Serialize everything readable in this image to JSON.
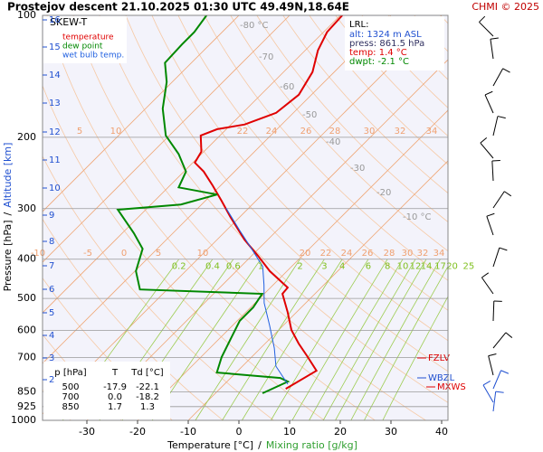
{
  "chart_data": {
    "type": "skewt",
    "title": "Prostejov   descent   21.10.2025 01:30 UTC  49.49N,18.64E",
    "credit": "CHMI © 2025",
    "legend_title": "SKEW-T",
    "x_label": "Temperature [°C]",
    "x_label_sep": "/",
    "x_label2": "Mixing ratio [g/kg]",
    "y_label": "Pressure [hPa]",
    "y_label_sep": "/",
    "y_label2": "Altitude [km]",
    "xlim": [
      -38.75,
      41.25
    ],
    "xticks": [
      -30,
      -20,
      -10,
      0,
      10,
      20,
      30,
      40
    ],
    "ylim": [
      1000,
      100
    ],
    "yticks": [
      100,
      200,
      300,
      400,
      500,
      600,
      700,
      850,
      925,
      1000
    ],
    "log_y": true,
    "skew": 1.0,
    "grid": true,
    "altitude_ticks": [
      2,
      3,
      4,
      5,
      6,
      7,
      8,
      9,
      10,
      11,
      12,
      13,
      14,
      15,
      16
    ],
    "isotherm_labels": [
      {
        "value": -80,
        "label": "-80 °C"
      },
      -70,
      -60,
      -50,
      -40,
      -30,
      -20,
      {
        "value": -10,
        "label": "-10 °C"
      }
    ],
    "adiabat_labels_upper": [
      5,
      10,
      22,
      24,
      26,
      28,
      30,
      32,
      34
    ],
    "adiabat_labels_lower": [
      -10,
      -5,
      0,
      5,
      10,
      20,
      22,
      24,
      26,
      28,
      30,
      32,
      34
    ],
    "mixing_ratio_labels": [
      {
        "value": 0.2,
        "label": "0.2"
      },
      {
        "value": 0.4,
        "label": "0.4"
      },
      {
        "value": 0.6,
        "label": "0.6"
      },
      1,
      2,
      3,
      4,
      6,
      8,
      10,
      12,
      14,
      17,
      20,
      25
    ],
    "series": [
      {
        "name": "temperature",
        "color": "#e00000",
        "pressure": [
          836,
          754,
          698,
          646,
          598,
          540,
          487,
          470,
          428,
          392,
          358,
          315,
          287,
          263,
          243,
          231,
          217,
          198,
          191,
          186,
          174,
          157,
          138,
          122,
          110,
          100
        ],
        "values": [
          3.0,
          5.5,
          1.1,
          -3.4,
          -7.5,
          -11.8,
          -16.4,
          -16.6,
          -23.4,
          -28.8,
          -34.6,
          -41.8,
          -46.8,
          -51.6,
          -56.1,
          -59.6,
          -60.5,
          -63.8,
          -61.8,
          -57.3,
          -53.4,
          -52.5,
          -54.3,
          -57.5,
          -59.3,
          -59.6
        ]
      },
      {
        "name": "dew point",
        "color": "#008800",
        "pressure": [
          857,
          802,
          786,
          762,
          698,
          630,
          568,
          526,
          487,
          475,
          428,
          377,
          345,
          302,
          293,
          277,
          266,
          243,
          220,
          198,
          170,
          146,
          131,
          118,
          110,
          100
        ],
        "values": [
          -0.7,
          2.0,
          -0.2,
          -13.8,
          -15.9,
          -17.7,
          -19.5,
          -19.5,
          -20.4,
          -45.4,
          -49.8,
          -52.9,
          -57.7,
          -65.5,
          -54.1,
          -48.9,
          -57.9,
          -59.6,
          -64.5,
          -70.7,
          -76.6,
          -81.1,
          -85.2,
          -85.5,
          -85.5,
          -86.4
        ]
      },
      {
        "name": "wet bulb temp.",
        "color": "#2060e0",
        "pressure": [
          814,
          735,
          663,
          583,
          513,
          463,
          417,
          377,
          340,
          299
        ],
        "values": [
          2.5,
          -3.4,
          -7.3,
          -12.7,
          -18.2,
          -21.8,
          -25.7,
          -31.4,
          -37.3,
          -44.5
        ]
      }
    ],
    "lrl": {
      "title": "LRL:",
      "lines": [
        "alt: 1324 m ASL",
        "press: 861.5 hPa",
        "temp: 1.4 °C",
        "dwpt: -2.1 °C"
      ]
    },
    "annotations": [
      "FZLV",
      "WBZL",
      "MXWS"
    ],
    "table": {
      "header": [
        "p [hPa]",
        "T",
        "Td [°C]"
      ],
      "rows": [
        [
          "500",
          "-17.9",
          "-22.1"
        ],
        [
          "700",
          "0.0",
          "-18.2"
        ],
        [
          "850",
          "1.7",
          "1.3"
        ]
      ]
    }
  }
}
